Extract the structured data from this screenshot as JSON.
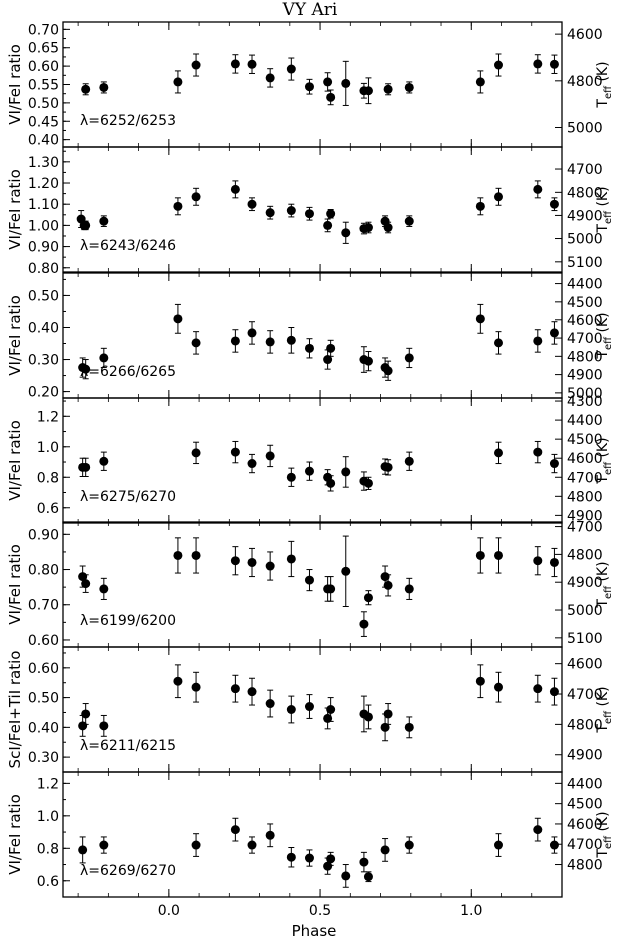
{
  "figure": {
    "title": "VY Ari",
    "xlabel": "Phase",
    "xlim": [
      -0.35,
      1.3
    ],
    "x_ticks": [
      0.0,
      0.5,
      1.0
    ],
    "x_tick_labels": [
      "0.0",
      "0.5",
      "1.0"
    ]
  },
  "chart_data": [
    {
      "type": "scatter",
      "ylabel": "VI/FeI ratio",
      "right_label": "T_eff (K)",
      "annotation": "λ=6252/6253",
      "ylim": [
        0.38,
        0.72
      ],
      "y_ticks": [
        0.4,
        0.45,
        0.5,
        0.55,
        0.6,
        0.65,
        0.7
      ],
      "y_tick_labels": [
        "0.40",
        "0.45",
        "0.50",
        "0.55",
        "0.60",
        "0.65",
        "0.70"
      ],
      "right_ticks": [
        {
          "label": "4600",
          "y": 0.687
        },
        {
          "label": "4800",
          "y": 0.56
        },
        {
          "label": "5000",
          "y": 0.433
        }
      ],
      "points": [
        {
          "x": -0.275,
          "y": 0.537,
          "err": 0.015
        },
        {
          "x": -0.215,
          "y": 0.542,
          "err": 0.015
        },
        {
          "x": 0.03,
          "y": 0.557,
          "err": 0.03
        },
        {
          "x": 0.09,
          "y": 0.603,
          "err": 0.03
        },
        {
          "x": 0.22,
          "y": 0.606,
          "err": 0.025
        },
        {
          "x": 0.275,
          "y": 0.605,
          "err": 0.025
        },
        {
          "x": 0.335,
          "y": 0.568,
          "err": 0.025
        },
        {
          "x": 0.405,
          "y": 0.592,
          "err": 0.03
        },
        {
          "x": 0.465,
          "y": 0.544,
          "err": 0.02
        },
        {
          "x": 0.525,
          "y": 0.557,
          "err": 0.025
        },
        {
          "x": 0.535,
          "y": 0.515,
          "err": 0.02
        },
        {
          "x": 0.585,
          "y": 0.553,
          "err": 0.06
        },
        {
          "x": 0.645,
          "y": 0.533,
          "err": 0.02
        },
        {
          "x": 0.66,
          "y": 0.533,
          "err": 0.035
        },
        {
          "x": 0.725,
          "y": 0.537,
          "err": 0.015
        },
        {
          "x": 0.795,
          "y": 0.542,
          "err": 0.015
        },
        {
          "x": 1.03,
          "y": 0.557,
          "err": 0.03
        },
        {
          "x": 1.09,
          "y": 0.603,
          "err": 0.03
        },
        {
          "x": 1.22,
          "y": 0.606,
          "err": 0.025
        },
        {
          "x": 1.275,
          "y": 0.605,
          "err": 0.025
        }
      ]
    },
    {
      "type": "scatter",
      "ylabel": "VI/FeI ratio",
      "right_label": "T_eff (K)",
      "annotation": "λ=6243/6246",
      "ylim": [
        0.78,
        1.37
      ],
      "y_ticks": [
        0.8,
        0.9,
        1.0,
        1.1,
        1.2,
        1.3
      ],
      "y_tick_labels": [
        "0.80",
        "0.90",
        "1.00",
        "1.10",
        "1.20",
        "1.30"
      ],
      "right_ticks": [
        {
          "label": "4700",
          "y": 1.266
        },
        {
          "label": "4800",
          "y": 1.156
        },
        {
          "label": "4900",
          "y": 1.047
        },
        {
          "label": "5000",
          "y": 0.938
        },
        {
          "label": "5100",
          "y": 0.828
        }
      ],
      "points": [
        {
          "x": -0.29,
          "y": 1.03,
          "err": 0.04
        },
        {
          "x": -0.28,
          "y": 1.0,
          "err": 0.02
        },
        {
          "x": -0.275,
          "y": 1.0,
          "err": 0.02
        },
        {
          "x": -0.215,
          "y": 1.02,
          "err": 0.025
        },
        {
          "x": 0.03,
          "y": 1.09,
          "err": 0.04
        },
        {
          "x": 0.09,
          "y": 1.135,
          "err": 0.04
        },
        {
          "x": 0.22,
          "y": 1.17,
          "err": 0.04
        },
        {
          "x": 0.275,
          "y": 1.1,
          "err": 0.03
        },
        {
          "x": 0.335,
          "y": 1.06,
          "err": 0.03
        },
        {
          "x": 0.405,
          "y": 1.07,
          "err": 0.03
        },
        {
          "x": 0.465,
          "y": 1.055,
          "err": 0.03
        },
        {
          "x": 0.525,
          "y": 1.0,
          "err": 0.03
        },
        {
          "x": 0.535,
          "y": 1.055,
          "err": 0.02
        },
        {
          "x": 0.585,
          "y": 0.965,
          "err": 0.05
        },
        {
          "x": 0.645,
          "y": 0.985,
          "err": 0.025
        },
        {
          "x": 0.66,
          "y": 0.99,
          "err": 0.025
        },
        {
          "x": 0.715,
          "y": 1.02,
          "err": 0.025
        },
        {
          "x": 0.725,
          "y": 0.99,
          "err": 0.025
        },
        {
          "x": 0.795,
          "y": 1.02,
          "err": 0.025
        },
        {
          "x": 1.03,
          "y": 1.09,
          "err": 0.04
        },
        {
          "x": 1.09,
          "y": 1.135,
          "err": 0.04
        },
        {
          "x": 1.22,
          "y": 1.17,
          "err": 0.04
        },
        {
          "x": 1.275,
          "y": 1.1,
          "err": 0.03
        }
      ]
    },
    {
      "type": "scatter",
      "ylabel": "VI/FeI ratio",
      "right_label": "T_eff (K)",
      "annotation": "λ=6266/6265",
      "ylim": [
        0.18,
        0.57
      ],
      "y_ticks": [
        0.2,
        0.3,
        0.4,
        0.5
      ],
      "y_tick_labels": [
        "0.20",
        "0.30",
        "0.40",
        "0.50"
      ],
      "right_ticks": [
        {
          "label": "4400",
          "y": 0.537
        },
        {
          "label": "4500",
          "y": 0.48
        },
        {
          "label": "4600",
          "y": 0.424
        },
        {
          "label": "4700",
          "y": 0.367
        },
        {
          "label": "4800",
          "y": 0.31
        },
        {
          "label": "4900",
          "y": 0.253
        },
        {
          "label": "5000",
          "y": 0.196
        }
      ],
      "points": [
        {
          "x": -0.285,
          "y": 0.275,
          "err": 0.03
        },
        {
          "x": -0.275,
          "y": 0.27,
          "err": 0.03
        },
        {
          "x": -0.215,
          "y": 0.305,
          "err": 0.03
        },
        {
          "x": 0.03,
          "y": 0.427,
          "err": 0.045
        },
        {
          "x": 0.09,
          "y": 0.352,
          "err": 0.035
        },
        {
          "x": 0.22,
          "y": 0.358,
          "err": 0.035
        },
        {
          "x": 0.275,
          "y": 0.383,
          "err": 0.035
        },
        {
          "x": 0.335,
          "y": 0.355,
          "err": 0.035
        },
        {
          "x": 0.405,
          "y": 0.36,
          "err": 0.04
        },
        {
          "x": 0.465,
          "y": 0.335,
          "err": 0.03
        },
        {
          "x": 0.525,
          "y": 0.3,
          "err": 0.03
        },
        {
          "x": 0.535,
          "y": 0.335,
          "err": 0.025
        },
        {
          "x": 0.645,
          "y": 0.3,
          "err": 0.04
        },
        {
          "x": 0.66,
          "y": 0.295,
          "err": 0.03
        },
        {
          "x": 0.715,
          "y": 0.275,
          "err": 0.03
        },
        {
          "x": 0.725,
          "y": 0.265,
          "err": 0.03
        },
        {
          "x": 0.795,
          "y": 0.305,
          "err": 0.03
        },
        {
          "x": 1.03,
          "y": 0.427,
          "err": 0.045
        },
        {
          "x": 1.09,
          "y": 0.352,
          "err": 0.035
        },
        {
          "x": 1.22,
          "y": 0.358,
          "err": 0.035
        },
        {
          "x": 1.275,
          "y": 0.383,
          "err": 0.035
        }
      ]
    },
    {
      "type": "scatter",
      "ylabel": "VI/FeI ratio",
      "right_label": "T_eff (K)",
      "annotation": "λ=6275/6270",
      "ylim": [
        0.5,
        1.32
      ],
      "y_ticks": [
        0.6,
        0.8,
        1.0,
        1.2
      ],
      "y_tick_labels": [
        "0.6",
        "0.8",
        "1.0",
        "1.2"
      ],
      "right_ticks": [
        {
          "label": "4300",
          "y": 1.3
        },
        {
          "label": "4400",
          "y": 1.175
        },
        {
          "label": "4500",
          "y": 1.05
        },
        {
          "label": "4600",
          "y": 0.925
        },
        {
          "label": "4700",
          "y": 0.8
        },
        {
          "label": "4800",
          "y": 0.675
        },
        {
          "label": "4900",
          "y": 0.55
        }
      ],
      "points": [
        {
          "x": -0.285,
          "y": 0.865,
          "err": 0.06
        },
        {
          "x": -0.275,
          "y": 0.865,
          "err": 0.06
        },
        {
          "x": -0.215,
          "y": 0.905,
          "err": 0.06
        },
        {
          "x": 0.09,
          "y": 0.96,
          "err": 0.07
        },
        {
          "x": 0.22,
          "y": 0.965,
          "err": 0.07
        },
        {
          "x": 0.275,
          "y": 0.89,
          "err": 0.06
        },
        {
          "x": 0.335,
          "y": 0.94,
          "err": 0.07
        },
        {
          "x": 0.405,
          "y": 0.8,
          "err": 0.06
        },
        {
          "x": 0.465,
          "y": 0.84,
          "err": 0.06
        },
        {
          "x": 0.525,
          "y": 0.8,
          "err": 0.05
        },
        {
          "x": 0.535,
          "y": 0.76,
          "err": 0.05
        },
        {
          "x": 0.585,
          "y": 0.835,
          "err": 0.1
        },
        {
          "x": 0.645,
          "y": 0.775,
          "err": 0.06
        },
        {
          "x": 0.66,
          "y": 0.76,
          "err": 0.04
        },
        {
          "x": 0.715,
          "y": 0.87,
          "err": 0.05
        },
        {
          "x": 0.725,
          "y": 0.865,
          "err": 0.05
        },
        {
          "x": 0.795,
          "y": 0.905,
          "err": 0.06
        },
        {
          "x": 1.09,
          "y": 0.96,
          "err": 0.07
        },
        {
          "x": 1.22,
          "y": 0.965,
          "err": 0.07
        },
        {
          "x": 1.275,
          "y": 0.89,
          "err": 0.06
        }
      ]
    },
    {
      "type": "scatter",
      "ylabel": "VI/FeI ratio",
      "right_label": "T_eff (K)",
      "annotation": "λ=6199/6200",
      "ylim": [
        0.58,
        0.935
      ],
      "y_ticks": [
        0.6,
        0.7,
        0.8,
        0.9
      ],
      "y_tick_labels": [
        "0.60",
        "0.70",
        "0.80",
        "0.90"
      ],
      "right_ticks": [
        {
          "label": "4700",
          "y": 0.922
        },
        {
          "label": "4800",
          "y": 0.843
        },
        {
          "label": "4900",
          "y": 0.764
        },
        {
          "label": "5000",
          "y": 0.685
        },
        {
          "label": "5100",
          "y": 0.606
        }
      ],
      "points": [
        {
          "x": -0.285,
          "y": 0.78,
          "err": 0.03
        },
        {
          "x": -0.275,
          "y": 0.76,
          "err": 0.025
        },
        {
          "x": -0.215,
          "y": 0.745,
          "err": 0.03
        },
        {
          "x": 0.03,
          "y": 0.84,
          "err": 0.05
        },
        {
          "x": 0.09,
          "y": 0.84,
          "err": 0.05
        },
        {
          "x": 0.22,
          "y": 0.825,
          "err": 0.04
        },
        {
          "x": 0.275,
          "y": 0.82,
          "err": 0.04
        },
        {
          "x": 0.335,
          "y": 0.81,
          "err": 0.04
        },
        {
          "x": 0.405,
          "y": 0.83,
          "err": 0.05
        },
        {
          "x": 0.465,
          "y": 0.77,
          "err": 0.03
        },
        {
          "x": 0.525,
          "y": 0.745,
          "err": 0.035
        },
        {
          "x": 0.535,
          "y": 0.745,
          "err": 0.035
        },
        {
          "x": 0.585,
          "y": 0.795,
          "err": 0.1
        },
        {
          "x": 0.645,
          "y": 0.645,
          "err": 0.035
        },
        {
          "x": 0.66,
          "y": 0.72,
          "err": 0.02
        },
        {
          "x": 0.715,
          "y": 0.78,
          "err": 0.03
        },
        {
          "x": 0.725,
          "y": 0.755,
          "err": 0.03
        },
        {
          "x": 0.795,
          "y": 0.745,
          "err": 0.03
        },
        {
          "x": 1.03,
          "y": 0.84,
          "err": 0.05
        },
        {
          "x": 1.09,
          "y": 0.84,
          "err": 0.05
        },
        {
          "x": 1.22,
          "y": 0.825,
          "err": 0.04
        },
        {
          "x": 1.275,
          "y": 0.82,
          "err": 0.04
        }
      ]
    },
    {
      "type": "scatter",
      "ylabel": "ScI/FeI+TiI ratio",
      "right_label": "T_eff (K)",
      "annotation": "λ=6211/6215",
      "ylim": [
        0.25,
        0.67
      ],
      "y_ticks": [
        0.3,
        0.4,
        0.5,
        0.6
      ],
      "y_tick_labels": [
        "0.30",
        "0.40",
        "0.50",
        "0.60"
      ],
      "right_ticks": [
        {
          "label": "4600",
          "y": 0.614
        },
        {
          "label": "4700",
          "y": 0.512
        },
        {
          "label": "4800",
          "y": 0.41
        },
        {
          "label": "4900",
          "y": 0.308
        }
      ],
      "points": [
        {
          "x": -0.285,
          "y": 0.405,
          "err": 0.035
        },
        {
          "x": -0.275,
          "y": 0.445,
          "err": 0.035
        },
        {
          "x": -0.215,
          "y": 0.405,
          "err": 0.035
        },
        {
          "x": 0.03,
          "y": 0.555,
          "err": 0.055
        },
        {
          "x": 0.09,
          "y": 0.535,
          "err": 0.05
        },
        {
          "x": 0.22,
          "y": 0.53,
          "err": 0.045
        },
        {
          "x": 0.275,
          "y": 0.52,
          "err": 0.045
        },
        {
          "x": 0.335,
          "y": 0.48,
          "err": 0.045
        },
        {
          "x": 0.405,
          "y": 0.46,
          "err": 0.045
        },
        {
          "x": 0.465,
          "y": 0.47,
          "err": 0.04
        },
        {
          "x": 0.525,
          "y": 0.43,
          "err": 0.035
        },
        {
          "x": 0.535,
          "y": 0.46,
          "err": 0.04
        },
        {
          "x": 0.645,
          "y": 0.445,
          "err": 0.06
        },
        {
          "x": 0.66,
          "y": 0.435,
          "err": 0.04
        },
        {
          "x": 0.715,
          "y": 0.4,
          "err": 0.045
        },
        {
          "x": 0.725,
          "y": 0.445,
          "err": 0.035
        },
        {
          "x": 0.795,
          "y": 0.4,
          "err": 0.035
        },
        {
          "x": 1.03,
          "y": 0.555,
          "err": 0.055
        },
        {
          "x": 1.09,
          "y": 0.535,
          "err": 0.05
        },
        {
          "x": 1.22,
          "y": 0.53,
          "err": 0.045
        },
        {
          "x": 1.275,
          "y": 0.52,
          "err": 0.045
        }
      ]
    },
    {
      "type": "scatter",
      "ylabel": "VI/FeI ratio",
      "right_label": "T_eff (K)",
      "annotation": "λ=6269/6270",
      "ylim": [
        0.5,
        1.27
      ],
      "y_ticks": [
        0.6,
        0.8,
        1.0,
        1.2
      ],
      "y_tick_labels": [
        "0.6",
        "0.8",
        "1.0",
        "1.2"
      ],
      "right_ticks": [
        {
          "label": "4400",
          "y": 1.2
        },
        {
          "label": "4500",
          "y": 1.075
        },
        {
          "label": "4600",
          "y": 0.95
        },
        {
          "label": "4700",
          "y": 0.825
        },
        {
          "label": "4800",
          "y": 0.7
        }
      ],
      "points": [
        {
          "x": -0.285,
          "y": 0.79,
          "err": 0.08
        },
        {
          "x": -0.215,
          "y": 0.82,
          "err": 0.05
        },
        {
          "x": 0.09,
          "y": 0.82,
          "err": 0.07
        },
        {
          "x": 0.22,
          "y": 0.915,
          "err": 0.07
        },
        {
          "x": 0.275,
          "y": 0.82,
          "err": 0.05
        },
        {
          "x": 0.335,
          "y": 0.88,
          "err": 0.07
        },
        {
          "x": 0.405,
          "y": 0.745,
          "err": 0.06
        },
        {
          "x": 0.465,
          "y": 0.74,
          "err": 0.05
        },
        {
          "x": 0.525,
          "y": 0.69,
          "err": 0.05
        },
        {
          "x": 0.535,
          "y": 0.735,
          "err": 0.04
        },
        {
          "x": 0.585,
          "y": 0.63,
          "err": 0.07
        },
        {
          "x": 0.645,
          "y": 0.715,
          "err": 0.06
        },
        {
          "x": 0.66,
          "y": 0.625,
          "err": 0.03
        },
        {
          "x": 0.715,
          "y": 0.79,
          "err": 0.07
        },
        {
          "x": 0.795,
          "y": 0.82,
          "err": 0.05
        },
        {
          "x": 1.09,
          "y": 0.82,
          "err": 0.07
        },
        {
          "x": 1.22,
          "y": 0.915,
          "err": 0.07
        },
        {
          "x": 1.275,
          "y": 0.82,
          "err": 0.05
        }
      ]
    }
  ]
}
